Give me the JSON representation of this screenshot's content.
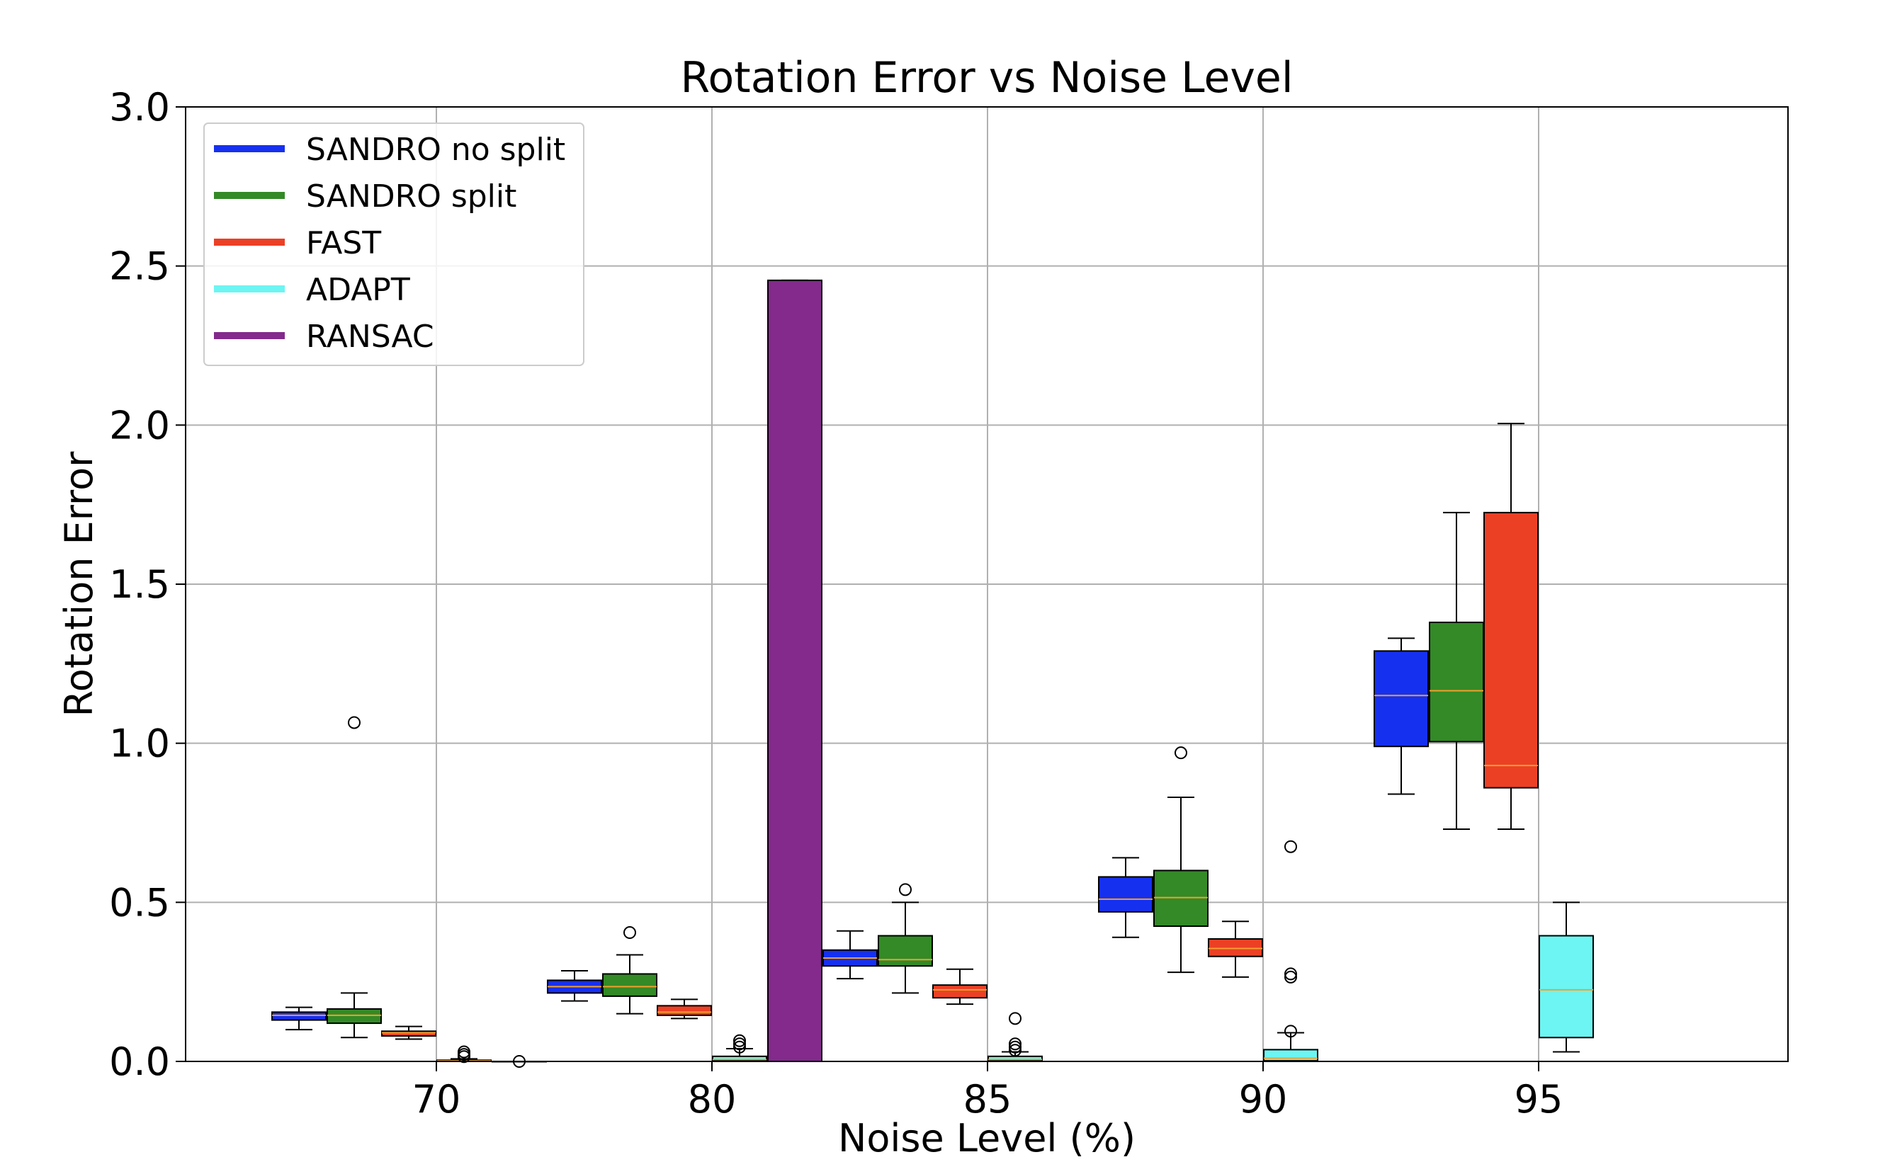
{
  "chart_data": {
    "type": "boxplot",
    "title": "Rotation Error vs Noise Level",
    "xlabel": "Noise Level (%)",
    "ylabel": "Rotation Error",
    "ylim": [
      0,
      3.0
    ],
    "yticks": [
      0,
      0.5,
      1.0,
      1.5,
      2.0,
      2.5,
      3.0
    ],
    "ytick_labels": [
      "0.0",
      "0.5",
      "1.0",
      "1.5",
      "2.0",
      "2.5",
      "3.0"
    ],
    "categories": [
      "70",
      "80",
      "85",
      "90",
      "95"
    ],
    "grid": true,
    "legend_position": "top-left",
    "series": [
      {
        "name": "SANDRO no split",
        "color": "#1630f0",
        "boxes": [
          {
            "category": "70",
            "whislo": 0.1,
            "q1": 0.13,
            "med": 0.145,
            "q3": 0.155,
            "whishi": 0.17,
            "fliers": []
          },
          {
            "category": "80",
            "whislo": 0.19,
            "q1": 0.215,
            "med": 0.235,
            "q3": 0.255,
            "whishi": 0.285,
            "fliers": []
          },
          {
            "category": "85",
            "whislo": 0.26,
            "q1": 0.3,
            "med": 0.325,
            "q3": 0.35,
            "whishi": 0.41,
            "fliers": []
          },
          {
            "category": "90",
            "whislo": 0.39,
            "q1": 0.47,
            "med": 0.51,
            "q3": 0.58,
            "whishi": 0.64,
            "fliers": []
          },
          {
            "category": "95",
            "whislo": 0.84,
            "q1": 0.99,
            "med": 1.15,
            "q3": 1.29,
            "whishi": 1.33,
            "fliers": []
          }
        ]
      },
      {
        "name": "SANDRO split",
        "color": "#338a26",
        "boxes": [
          {
            "category": "70",
            "whislo": 0.075,
            "q1": 0.12,
            "med": 0.145,
            "q3": 0.165,
            "whishi": 0.215,
            "fliers": [
              1.065
            ]
          },
          {
            "category": "80",
            "whislo": 0.15,
            "q1": 0.205,
            "med": 0.235,
            "q3": 0.275,
            "whishi": 0.335,
            "fliers": [
              0.405
            ]
          },
          {
            "category": "85",
            "whislo": 0.215,
            "q1": 0.3,
            "med": 0.32,
            "q3": 0.395,
            "whishi": 0.5,
            "fliers": [
              0.54
            ]
          },
          {
            "category": "90",
            "whislo": 0.28,
            "q1": 0.425,
            "med": 0.515,
            "q3": 0.6,
            "whishi": 0.83,
            "fliers": [
              0.97
            ]
          },
          {
            "category": "95",
            "whislo": 0.73,
            "q1": 1.005,
            "med": 1.165,
            "q3": 1.38,
            "whishi": 1.725,
            "fliers": []
          }
        ]
      },
      {
        "name": "FAST",
        "color": "#ec4025",
        "boxes": [
          {
            "category": "70",
            "whislo": 0.07,
            "q1": 0.08,
            "med": 0.09,
            "q3": 0.095,
            "whishi": 0.11,
            "fliers": []
          },
          {
            "category": "80",
            "whislo": 0.135,
            "q1": 0.145,
            "med": 0.155,
            "q3": 0.175,
            "whishi": 0.195,
            "fliers": []
          },
          {
            "category": "85",
            "whislo": 0.18,
            "q1": 0.2,
            "med": 0.225,
            "q3": 0.24,
            "whishi": 0.29,
            "fliers": []
          },
          {
            "category": "90",
            "whislo": 0.265,
            "q1": 0.33,
            "med": 0.355,
            "q3": 0.385,
            "whishi": 0.44,
            "fliers": []
          },
          {
            "category": "95",
            "whislo": 0.73,
            "q1": 0.86,
            "med": 0.93,
            "q3": 1.725,
            "whishi": 2.005,
            "fliers": []
          }
        ]
      },
      {
        "name": "ADAPT",
        "color": "#6cf5f2",
        "boxes": [
          {
            "category": "70",
            "whislo": 0.0,
            "q1": 0.0,
            "med": 0.002,
            "q3": 0.004,
            "whishi": 0.008,
            "fliers": [
              0.015,
              0.022,
              0.03
            ]
          },
          {
            "category": "80",
            "whislo": 0.0,
            "q1": 0.002,
            "med": 0.006,
            "q3": 0.016,
            "whishi": 0.04,
            "fliers": [
              0.045,
              0.055,
              0.065
            ]
          },
          {
            "category": "85",
            "whislo": 0.0,
            "q1": 0.002,
            "med": 0.006,
            "q3": 0.016,
            "whishi": 0.03,
            "fliers": [
              0.035,
              0.045,
              0.055,
              0.135
            ]
          },
          {
            "category": "90",
            "whislo": 0.0,
            "q1": 0.002,
            "med": 0.01,
            "q3": 0.037,
            "whishi": 0.09,
            "fliers": [
              0.095,
              0.265,
              0.275,
              0.675
            ]
          },
          {
            "category": "95",
            "whislo": 0.03,
            "q1": 0.075,
            "med": 0.225,
            "q3": 0.395,
            "whishi": 0.5,
            "fliers": []
          }
        ]
      },
      {
        "name": "RANSAC",
        "color": "#832a8c",
        "boxes": [
          {
            "category": "70",
            "whislo": 0.0,
            "q1": 0.0,
            "med": 0.0,
            "q3": 0.0,
            "whishi": 0.0,
            "fliers": [
              0.0
            ]
          },
          {
            "category": "80",
            "whislo": 0.0,
            "q1": 0.0,
            "med": 0.0,
            "q3": 2.455,
            "whishi": 2.455,
            "fliers": []
          }
        ]
      }
    ]
  }
}
